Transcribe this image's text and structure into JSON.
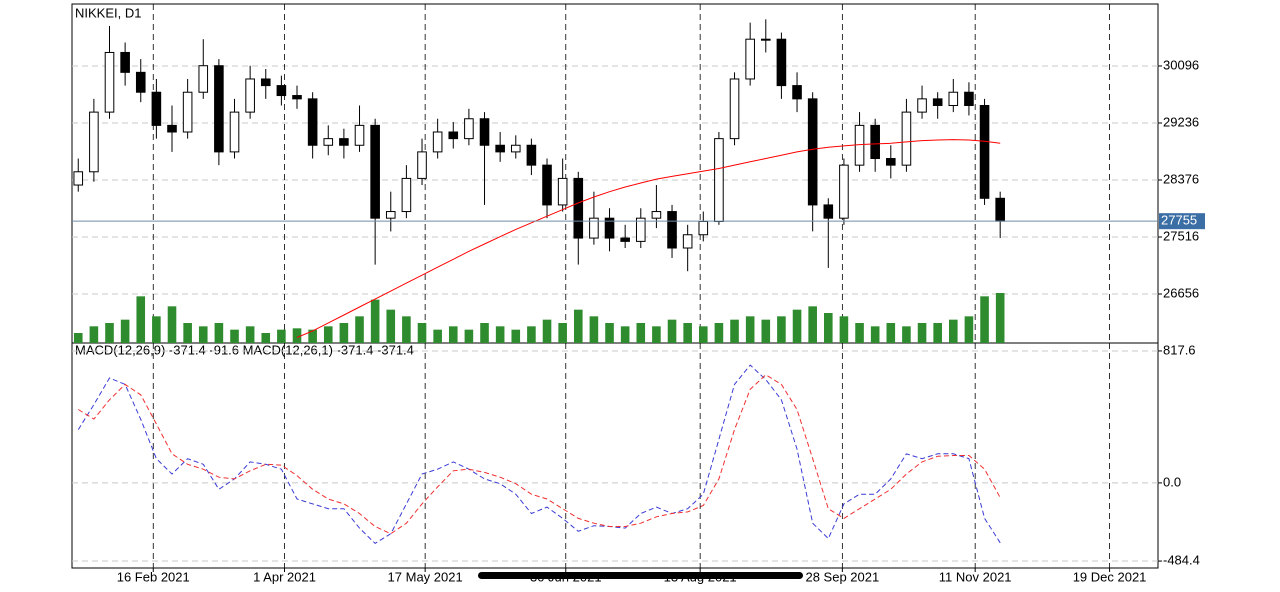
{
  "chart_data": [
    {
      "type": "candlestick",
      "title": "NIKKEI, D1",
      "open": [
        28300,
        28500,
        29400,
        30300,
        30000,
        29700,
        29200,
        29100,
        29700,
        30100,
        28800,
        29400,
        29900,
        29800,
        29650,
        29600,
        28900,
        29000,
        28900,
        29200,
        27800,
        27900,
        28400,
        28800,
        29100,
        29000,
        29300,
        28900,
        28800,
        28900,
        28600,
        28000,
        28400,
        27500,
        27800,
        27500,
        27450,
        27800,
        27900,
        27350,
        27550,
        27750,
        29000,
        29900,
        30500,
        30500,
        29800,
        29600,
        28000,
        27800,
        28600,
        29200,
        28700,
        28600,
        29400,
        29600,
        29500,
        29700,
        29500,
        28100
      ],
      "high": [
        28700,
        29600,
        30700,
        30450,
        30200,
        29900,
        29500,
        29900,
        30500,
        30200,
        29600,
        30100,
        30050,
        29950,
        29800,
        29700,
        29200,
        29150,
        29500,
        29300,
        28200,
        28600,
        29000,
        29300,
        29250,
        29450,
        29400,
        29100,
        29050,
        29000,
        28700,
        28700,
        28500,
        28200,
        27950,
        27700,
        27950,
        28300,
        28000,
        27700,
        27900,
        29100,
        30000,
        30750,
        30800,
        30600,
        30000,
        29700,
        28100,
        28700,
        29400,
        29300,
        28900,
        29600,
        29800,
        29700,
        29900,
        29850,
        29600,
        28200
      ],
      "low": [
        28200,
        28350,
        29300,
        29800,
        29550,
        29000,
        28800,
        29000,
        29600,
        28600,
        28700,
        29300,
        29600,
        29500,
        29450,
        28700,
        28750,
        28700,
        28800,
        27100,
        27600,
        27800,
        28300,
        28700,
        28850,
        28900,
        28000,
        28650,
        28700,
        28450,
        27800,
        27900,
        27100,
        27400,
        27300,
        27350,
        27350,
        27650,
        27200,
        27000,
        27450,
        27700,
        28900,
        29800,
        30300,
        29600,
        29400,
        27600,
        27050,
        27700,
        28500,
        28500,
        28400,
        28500,
        29300,
        29300,
        29400,
        29350,
        28000,
        27500
      ],
      "close": [
        28500,
        29400,
        30300,
        30000,
        29700,
        29200,
        29100,
        29700,
        30100,
        28800,
        29400,
        29900,
        29800,
        29650,
        29600,
        28900,
        29000,
        28900,
        29200,
        27800,
        27900,
        28400,
        28800,
        29100,
        29000,
        29300,
        28900,
        28800,
        28900,
        28600,
        28000,
        28400,
        27500,
        27800,
        27500,
        27450,
        27800,
        27900,
        27350,
        27550,
        27750,
        29000,
        29900,
        30500,
        30500,
        29800,
        29600,
        28000,
        27800,
        28600,
        29200,
        28700,
        28600,
        29400,
        29600,
        29500,
        29700,
        29500,
        28100,
        27755
      ],
      "volume": [
        150,
        250,
        300,
        350,
        700,
        400,
        550,
        300,
        250,
        300,
        200,
        250,
        150,
        200,
        220,
        200,
        250,
        300,
        400,
        650,
        500,
        400,
        300,
        200,
        250,
        200,
        300,
        250,
        200,
        250,
        350,
        300,
        500,
        400,
        300,
        250,
        300,
        250,
        350,
        300,
        250,
        300,
        350,
        400,
        350,
        400,
        500,
        550,
        450,
        400,
        300,
        250,
        300,
        250,
        300,
        300,
        350,
        400,
        700,
        750
      ],
      "ma": [
        null,
        null,
        null,
        null,
        null,
        null,
        null,
        null,
        null,
        null,
        null,
        null,
        null,
        null,
        26000,
        26100,
        26220,
        26340,
        26460,
        26580,
        26700,
        26820,
        26940,
        27060,
        27180,
        27300,
        27410,
        27520,
        27630,
        27730,
        27830,
        27930,
        28030,
        28120,
        28200,
        28270,
        28330,
        28390,
        28430,
        28470,
        28510,
        28550,
        28600,
        28650,
        28700,
        28750,
        28800,
        28840,
        28870,
        28890,
        28910,
        28920,
        28930,
        28950,
        28970,
        28980,
        28985,
        28980,
        28960,
        28930
      ],
      "ma_color": "#ff0000",
      "volume_color": "#2e8b2e",
      "up_color": "#ffffff",
      "down_color": "#000000",
      "last_price": 27755,
      "last_price_color": "#3a6ea5",
      "ylim": [
        25917,
        31031
      ],
      "yticks": [
        30096,
        29236,
        28376,
        27516,
        26656
      ],
      "xlim": [
        -0.4,
        69.1
      ],
      "xticks": [
        {
          "value": 4.8,
          "label": "16 Feb 2021"
        },
        {
          "value": 13.2,
          "label": "1 Apr 2021"
        },
        {
          "value": 22.2,
          "label": "17 May 2021"
        },
        {
          "value": 31.2,
          "label": "30 Jun 2021"
        },
        {
          "value": 39.8,
          "label": "13 Aug 2021"
        },
        {
          "value": 48.9,
          "label": "28 Sep 2021"
        },
        {
          "value": 57.4,
          "label": "11 Nov 2021"
        },
        {
          "value": 66,
          "label": "19 Dec 2021"
        }
      ],
      "grid": true
    },
    {
      "type": "line",
      "title": "MACD(12,26,9) -371.4 -91.6 MACD(12,26,1) -371.4 -371.4",
      "series": [
        {
          "color": "#3b3bd6",
          "values": [
            330,
            485,
            650,
            610,
            393,
            150,
            55,
            150,
            115,
            -40,
            25,
            130,
            115,
            85,
            -100,
            -130,
            -160,
            -160,
            -280,
            -375,
            -315,
            -130,
            55,
            85,
            130,
            85,
            25,
            -5,
            -70,
            -190,
            -150,
            -220,
            -300,
            -265,
            -270,
            -280,
            -190,
            -150,
            -190,
            -160,
            -70,
            270,
            610,
            730,
            640,
            515,
            210,
            -250,
            -345,
            -130,
            -70,
            -70,
            25,
            180,
            150,
            180,
            180,
            150,
            -220,
            -371.4
          ]
        },
        {
          "color": "#f03030",
          "values": [
            455,
            395,
            515,
            610,
            545,
            365,
            180,
            115,
            85,
            35,
            25,
            75,
            115,
            110,
            45,
            -40,
            -100,
            -130,
            -190,
            -270,
            -315,
            -250,
            -130,
            -25,
            75,
            85,
            65,
            35,
            -5,
            -70,
            -100,
            -160,
            -220,
            -250,
            -270,
            -270,
            -250,
            -210,
            -190,
            -180,
            -140,
            25,
            330,
            580,
            670,
            610,
            455,
            150,
            -160,
            -220,
            -160,
            -100,
            -40,
            55,
            130,
            165,
            170,
            170,
            85,
            -91.6
          ]
        }
      ],
      "ylim": [
        -527.4,
        866.8
      ],
      "yticks": [
        817.6,
        {
          "value": 0,
          "label": "0.0"
        },
        -484.4
      ],
      "xlim": [
        -0.4,
        69.1
      ],
      "grid": true
    }
  ]
}
